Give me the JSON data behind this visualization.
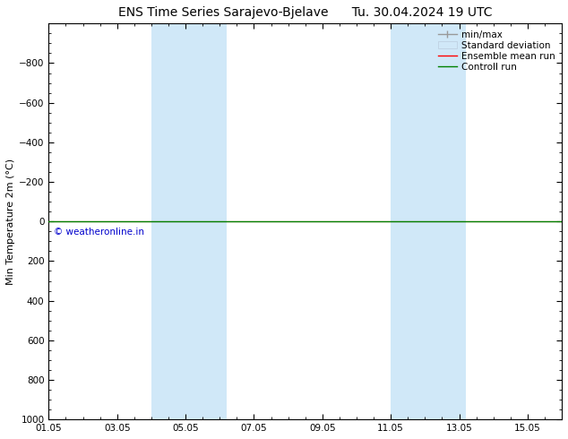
{
  "title_left": "ENS Time Series Sarajevo-Bjelave",
  "title_right": "Tu. 30.04.2024 19 UTC",
  "ylabel": "Min Temperature 2m (°C)",
  "ylim": [
    -1000,
    1000
  ],
  "yticks": [
    -800,
    -600,
    -400,
    -200,
    0,
    200,
    400,
    600,
    800,
    1000
  ],
  "xtick_labels": [
    "01.05",
    "03.05",
    "05.05",
    "07.05",
    "09.05",
    "11.05",
    "13.05",
    "15.05"
  ],
  "xtick_positions": [
    0,
    2,
    4,
    6,
    8,
    10,
    12,
    14
  ],
  "xlim": [
    0,
    15
  ],
  "shaded_bands": [
    {
      "x_start": 3.0,
      "x_end": 5.2
    },
    {
      "x_start": 10.0,
      "x_end": 12.2
    }
  ],
  "control_run_y": 0,
  "ensemble_mean_y": 0,
  "control_run_color": "#008000",
  "ensemble_mean_color": "#ff0000",
  "minmax_color": "#999999",
  "stddev_color": "#d0e8f8",
  "stddev_edge_color": "#bbccdd",
  "watermark": "© weatheronline.in",
  "watermark_color": "#0000cc",
  "background_color": "#ffffff",
  "plot_bg_color": "#ffffff",
  "border_color": "#000000",
  "title_fontsize": 10,
  "axis_fontsize": 8,
  "tick_fontsize": 7.5,
  "legend_fontsize": 7.5
}
